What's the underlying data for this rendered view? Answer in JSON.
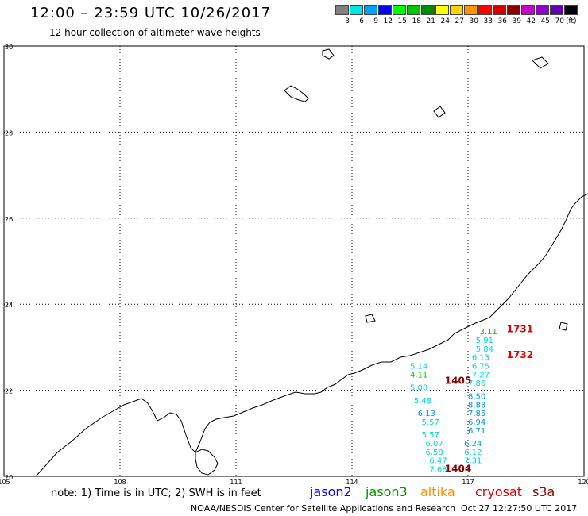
{
  "header": {
    "title": "12:00 – 23:59 UTC 10/26/2017",
    "subtitle": "12 hour collection of altimeter wave heights"
  },
  "colorbar": {
    "colors": [
      "#808080",
      "#00e5e5",
      "#00a0ff",
      "#0000ff",
      "#00ff00",
      "#00c800",
      "#008c00",
      "#ffff00",
      "#ffd200",
      "#ff9600",
      "#ff0000",
      "#d20000",
      "#8c0000",
      "#c800c8",
      "#9600c8",
      "#6400b4",
      "#000000"
    ],
    "ticks": [
      "3",
      "6",
      "9",
      "12",
      "15",
      "18",
      "21",
      "24",
      "27",
      "30",
      "33",
      "36",
      "39",
      "42",
      "45",
      "70"
    ],
    "unit": "(ft)"
  },
  "map": {
    "lon_ticks": [
      "105",
      "108",
      "111",
      "114",
      "117",
      "120"
    ],
    "lat_ticks": [
      "30",
      "28",
      "26",
      "24",
      "22",
      "20"
    ],
    "lon_range": [
      105,
      120
    ],
    "lat_range": [
      20,
      30
    ],
    "grid": true
  },
  "readings": [
    {
      "value": "3.11",
      "color": "#00c800",
      "lon": 117.3,
      "lat": 23.3
    },
    {
      "value": "5.91",
      "color": "#00d5d5",
      "lon": 117.2,
      "lat": 23.1
    },
    {
      "value": "5.84",
      "color": "#00d5d5",
      "lon": 117.2,
      "lat": 22.9
    },
    {
      "value": "6.13",
      "color": "#00d5d5",
      "lon": 117.1,
      "lat": 22.7
    },
    {
      "value": "6.75",
      "color": "#00d5d5",
      "lon": 117.1,
      "lat": 22.5
    },
    {
      "value": "7.27",
      "color": "#00d5d5",
      "lon": 117.1,
      "lat": 22.3
    },
    {
      "value": "7.86",
      "color": "#00d5d5",
      "lon": 117.0,
      "lat": 22.1
    },
    {
      "value": "8.50",
      "color": "#0096e0",
      "lon": 117.0,
      "lat": 21.8
    },
    {
      "value": "8.88",
      "color": "#0096e0",
      "lon": 117.0,
      "lat": 21.6
    },
    {
      "value": "7.85",
      "color": "#0096e0",
      "lon": 117.0,
      "lat": 21.4
    },
    {
      "value": "6.94",
      "color": "#0096e0",
      "lon": 117.0,
      "lat": 21.2
    },
    {
      "value": "6.71",
      "color": "#0096e0",
      "lon": 117.0,
      "lat": 21.0
    },
    {
      "value": "6.24",
      "color": "#0096e0",
      "lon": 116.9,
      "lat": 20.7
    },
    {
      "value": "6.12",
      "color": "#00d5d5",
      "lon": 116.9,
      "lat": 20.5
    },
    {
      "value": "7.31",
      "color": "#00d5d5",
      "lon": 116.9,
      "lat": 20.3
    },
    {
      "value": "5.14",
      "color": "#00d5d5",
      "lon": 115.5,
      "lat": 22.5
    },
    {
      "value": "4.11",
      "color": "#00c800",
      "lon": 115.5,
      "lat": 22.3
    },
    {
      "value": "5.08",
      "color": "#00d5d5",
      "lon": 115.5,
      "lat": 22.0
    },
    {
      "value": "5.48",
      "color": "#00d5d5",
      "lon": 115.6,
      "lat": 21.7
    },
    {
      "value": "6.13",
      "color": "#0096e0",
      "lon": 115.7,
      "lat": 21.4
    },
    {
      "value": "5.57",
      "color": "#00d5d5",
      "lon": 115.8,
      "lat": 21.2
    },
    {
      "value": "5.57",
      "color": "#00d5d5",
      "lon": 115.8,
      "lat": 20.9
    },
    {
      "value": "6.07",
      "color": "#00d5d5",
      "lon": 115.9,
      "lat": 20.7
    },
    {
      "value": "6.58",
      "color": "#00d5d5",
      "lon": 115.9,
      "lat": 20.5
    },
    {
      "value": "6.47",
      "color": "#00d5d5",
      "lon": 116.0,
      "lat": 20.3
    },
    {
      "value": "7.68",
      "color": "#00d5d5",
      "lon": 116.0,
      "lat": 20.1
    }
  ],
  "pass_times": [
    {
      "value": "1731",
      "color": "#e00000",
      "lon": 118.0,
      "lat": 23.35
    },
    {
      "value": "1732",
      "color": "#e00000",
      "lon": 118.0,
      "lat": 22.75
    },
    {
      "value": "1405",
      "color": "#8c0000",
      "lon": 116.4,
      "lat": 22.15
    },
    {
      "value": "1404",
      "color": "#8c0000",
      "lon": 116.4,
      "lat": 20.1
    }
  ],
  "footer": {
    "note": "note: 1) Time is in UTC; 2) SWH is in feet",
    "legend": [
      {
        "label": "jason2",
        "color": "#0000ff"
      },
      {
        "label": "jason3",
        "color": "#009600"
      },
      {
        "label": "altika",
        "color": "#ff8c00"
      },
      {
        "label": "cryosat",
        "color": "#e00000"
      },
      {
        "label": "s3a",
        "color": "#8c0000"
      }
    ],
    "credit": "NOAA/NESDIS Center for Satellite Applications and Research",
    "timestamp": "Oct 27 12:27:50 UTC 2017"
  }
}
